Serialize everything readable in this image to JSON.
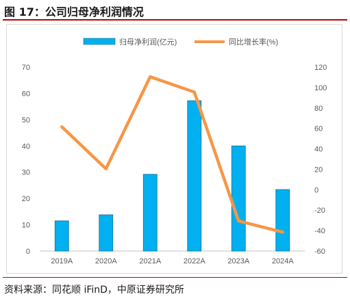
{
  "figure_title": "图 17：公司归母净利润情况",
  "source": "资料来源：同花顺 iFinD，中原证券研究所",
  "chart_data": {
    "type": "bar+line",
    "title": "",
    "categories": [
      "2019A",
      "2020A",
      "2021A",
      "2022A",
      "2023A",
      "2024A"
    ],
    "series": [
      {
        "name": "归母净利润(亿元)",
        "type": "bar",
        "axis": "left",
        "values": [
          11.5,
          13.8,
          29.2,
          57.2,
          40.0,
          23.4
        ],
        "color": "#00b0f0"
      },
      {
        "name": "同比增长率(%)",
        "type": "line",
        "axis": "right",
        "values": [
          61.5,
          20.5,
          110.5,
          95.5,
          -30.5,
          -41.5
        ],
        "color": "#f79646"
      }
    ],
    "y_left": {
      "min": 0,
      "max": 70,
      "step": 10,
      "ticks": [
        "0",
        "10",
        "20",
        "30",
        "40",
        "50",
        "60",
        "70"
      ]
    },
    "y_right": {
      "min": -60,
      "max": 120,
      "step": 20,
      "ticks": [
        "-60",
        "-40",
        "-20",
        "0",
        "20",
        "40",
        "60",
        "80",
        "100",
        "120"
      ]
    },
    "legend_position": "top-center",
    "grid": false
  }
}
